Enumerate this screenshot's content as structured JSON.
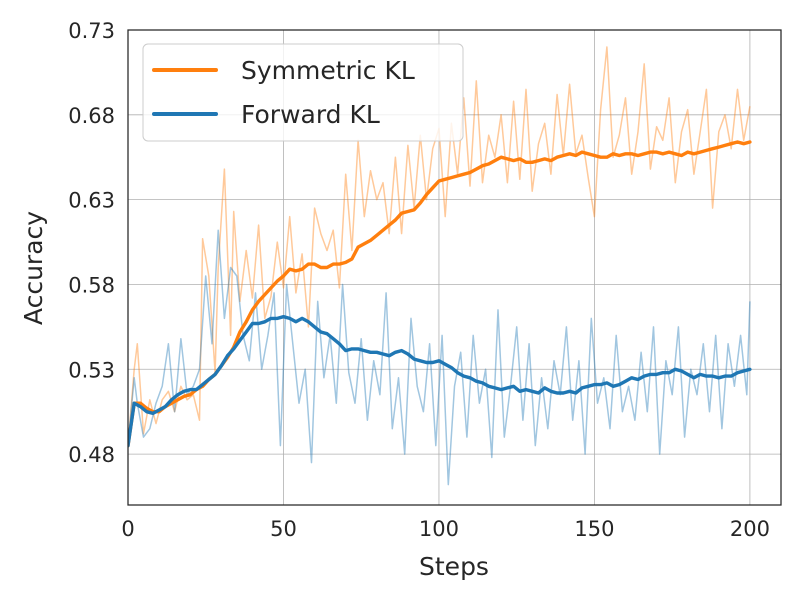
{
  "chart_data": {
    "type": "line",
    "title": "",
    "xlabel": "Steps",
    "ylabel": "Accuracy",
    "xlim": [
      0,
      210
    ],
    "ylim": [
      0.45,
      0.73
    ],
    "xticks": [
      0,
      50,
      100,
      150,
      200
    ],
    "yticks": [
      0.48,
      0.53,
      0.58,
      0.63,
      0.68,
      0.73
    ],
    "ytick_labels": [
      "0.48",
      "0.53",
      "0.58",
      "0.63",
      "0.68",
      "0.73"
    ],
    "grid": true,
    "legend_position": "top-left",
    "series": [
      {
        "name": "Symmetric KL",
        "color": "#ff7f0e",
        "smoothed": {
          "x": [
            0,
            2,
            4,
            6,
            8,
            10,
            12,
            14,
            16,
            18,
            20,
            22,
            24,
            26,
            28,
            30,
            32,
            34,
            36,
            38,
            40,
            42,
            44,
            46,
            48,
            50,
            52,
            54,
            56,
            58,
            60,
            62,
            64,
            66,
            68,
            70,
            72,
            74,
            76,
            78,
            80,
            82,
            84,
            86,
            88,
            90,
            92,
            94,
            96,
            98,
            100,
            102,
            104,
            106,
            108,
            110,
            112,
            114,
            116,
            118,
            120,
            122,
            124,
            126,
            128,
            130,
            132,
            134,
            136,
            138,
            140,
            142,
            144,
            146,
            148,
            150,
            152,
            154,
            156,
            158,
            160,
            162,
            164,
            166,
            168,
            170,
            172,
            174,
            176,
            178,
            180,
            182,
            184,
            186,
            188,
            190,
            192,
            194,
            196,
            198,
            200
          ],
          "y": [
            0.485,
            0.51,
            0.51,
            0.507,
            0.505,
            0.505,
            0.508,
            0.51,
            0.512,
            0.514,
            0.515,
            0.518,
            0.52,
            0.524,
            0.527,
            0.532,
            0.537,
            0.543,
            0.552,
            0.558,
            0.565,
            0.57,
            0.574,
            0.578,
            0.582,
            0.585,
            0.589,
            0.588,
            0.589,
            0.592,
            0.592,
            0.59,
            0.59,
            0.592,
            0.592,
            0.593,
            0.595,
            0.602,
            0.604,
            0.606,
            0.609,
            0.612,
            0.615,
            0.618,
            0.622,
            0.623,
            0.624,
            0.628,
            0.633,
            0.637,
            0.641,
            0.642,
            0.643,
            0.644,
            0.645,
            0.646,
            0.648,
            0.65,
            0.651,
            0.653,
            0.655,
            0.654,
            0.653,
            0.654,
            0.652,
            0.652,
            0.653,
            0.654,
            0.653,
            0.655,
            0.656,
            0.657,
            0.656,
            0.658,
            0.657,
            0.656,
            0.655,
            0.655,
            0.657,
            0.656,
            0.657,
            0.657,
            0.656,
            0.657,
            0.658,
            0.658,
            0.657,
            0.658,
            0.657,
            0.656,
            0.658,
            0.657,
            0.658,
            0.659,
            0.66,
            0.661,
            0.662,
            0.663,
            0.664,
            0.663,
            0.664
          ]
        },
        "raw": {
          "x": [
            0,
            2,
            3,
            5,
            7,
            9,
            11,
            13,
            15,
            17,
            19,
            21,
            23,
            24,
            26,
            28,
            29,
            31,
            33,
            34,
            36,
            38,
            40,
            42,
            44,
            46,
            48,
            50,
            52,
            54,
            56,
            58,
            60,
            62,
            64,
            66,
            68,
            70,
            72,
            74,
            76,
            78,
            80,
            82,
            84,
            86,
            88,
            90,
            92,
            94,
            96,
            98,
            100,
            102,
            104,
            106,
            108,
            110,
            112,
            114,
            116,
            118,
            120,
            122,
            124,
            126,
            128,
            130,
            132,
            134,
            136,
            138,
            140,
            142,
            144,
            146,
            148,
            150,
            152,
            154,
            156,
            158,
            160,
            162,
            164,
            166,
            168,
            170,
            172,
            174,
            176,
            178,
            180,
            182,
            184,
            186,
            188,
            190,
            192,
            194,
            196,
            198,
            200
          ],
          "y": [
            0.485,
            0.53,
            0.545,
            0.492,
            0.512,
            0.498,
            0.512,
            0.517,
            0.505,
            0.52,
            0.512,
            0.515,
            0.5,
            0.607,
            0.585,
            0.528,
            0.59,
            0.648,
            0.55,
            0.623,
            0.57,
            0.6,
            0.572,
            0.615,
            0.56,
            0.573,
            0.605,
            0.578,
            0.62,
            0.575,
            0.598,
            0.555,
            0.625,
            0.61,
            0.6,
            0.612,
            0.578,
            0.645,
            0.6,
            0.665,
            0.62,
            0.647,
            0.63,
            0.64,
            0.61,
            0.655,
            0.61,
            0.662,
            0.625,
            0.668,
            0.63,
            0.66,
            0.672,
            0.62,
            0.675,
            0.645,
            0.69,
            0.638,
            0.7,
            0.64,
            0.668,
            0.655,
            0.68,
            0.64,
            0.688,
            0.642,
            0.695,
            0.635,
            0.663,
            0.675,
            0.645,
            0.692,
            0.656,
            0.698,
            0.657,
            0.668,
            0.643,
            0.62,
            0.683,
            0.72,
            0.655,
            0.668,
            0.69,
            0.645,
            0.67,
            0.71,
            0.648,
            0.673,
            0.665,
            0.69,
            0.64,
            0.67,
            0.683,
            0.645,
            0.67,
            0.695,
            0.625,
            0.67,
            0.68,
            0.66,
            0.695,
            0.665,
            0.685
          ]
        }
      },
      {
        "name": "Forward KL",
        "color": "#1f77b4",
        "smoothed": {
          "x": [
            0,
            2,
            4,
            6,
            8,
            10,
            12,
            14,
            16,
            18,
            20,
            22,
            24,
            26,
            28,
            30,
            32,
            34,
            36,
            38,
            40,
            42,
            44,
            46,
            48,
            50,
            52,
            54,
            56,
            58,
            60,
            62,
            64,
            66,
            68,
            70,
            72,
            74,
            76,
            78,
            80,
            82,
            84,
            86,
            88,
            90,
            92,
            94,
            96,
            98,
            100,
            102,
            104,
            106,
            108,
            110,
            112,
            114,
            116,
            118,
            120,
            122,
            124,
            126,
            128,
            130,
            132,
            134,
            136,
            138,
            140,
            142,
            144,
            146,
            148,
            150,
            152,
            154,
            156,
            158,
            160,
            162,
            164,
            166,
            168,
            170,
            172,
            174,
            176,
            178,
            180,
            182,
            184,
            186,
            188,
            190,
            192,
            194,
            196,
            198,
            200
          ],
          "y": [
            0.485,
            0.51,
            0.508,
            0.505,
            0.504,
            0.506,
            0.508,
            0.512,
            0.515,
            0.517,
            0.518,
            0.518,
            0.521,
            0.524,
            0.527,
            0.532,
            0.538,
            0.542,
            0.547,
            0.552,
            0.557,
            0.557,
            0.558,
            0.56,
            0.56,
            0.561,
            0.56,
            0.558,
            0.56,
            0.558,
            0.555,
            0.552,
            0.551,
            0.548,
            0.545,
            0.541,
            0.542,
            0.542,
            0.541,
            0.54,
            0.54,
            0.539,
            0.538,
            0.54,
            0.541,
            0.539,
            0.536,
            0.535,
            0.534,
            0.534,
            0.535,
            0.533,
            0.531,
            0.528,
            0.526,
            0.525,
            0.523,
            0.522,
            0.52,
            0.519,
            0.518,
            0.519,
            0.52,
            0.517,
            0.518,
            0.517,
            0.516,
            0.519,
            0.517,
            0.516,
            0.516,
            0.517,
            0.516,
            0.519,
            0.52,
            0.521,
            0.521,
            0.522,
            0.52,
            0.521,
            0.523,
            0.525,
            0.524,
            0.526,
            0.527,
            0.527,
            0.528,
            0.528,
            0.53,
            0.529,
            0.527,
            0.525,
            0.527,
            0.526,
            0.526,
            0.525,
            0.526,
            0.526,
            0.528,
            0.529,
            0.53
          ]
        },
        "raw": {
          "x": [
            0,
            2,
            3,
            5,
            7,
            9,
            11,
            13,
            15,
            17,
            19,
            21,
            23,
            25,
            27,
            29,
            31,
            33,
            35,
            37,
            39,
            41,
            43,
            45,
            47,
            49,
            51,
            53,
            55,
            57,
            59,
            61,
            63,
            65,
            67,
            69,
            71,
            73,
            75,
            77,
            79,
            81,
            83,
            85,
            87,
            89,
            91,
            93,
            95,
            97,
            99,
            101,
            103,
            105,
            107,
            109,
            111,
            113,
            115,
            117,
            119,
            121,
            123,
            125,
            127,
            129,
            131,
            133,
            135,
            137,
            139,
            141,
            143,
            145,
            147,
            149,
            151,
            153,
            155,
            157,
            159,
            161,
            163,
            165,
            167,
            169,
            171,
            173,
            175,
            177,
            179,
            181,
            183,
            185,
            187,
            189,
            191,
            193,
            195,
            197,
            199,
            200
          ],
          "y": [
            0.485,
            0.525,
            0.51,
            0.49,
            0.495,
            0.51,
            0.52,
            0.545,
            0.505,
            0.548,
            0.515,
            0.52,
            0.53,
            0.585,
            0.545,
            0.612,
            0.56,
            0.59,
            0.585,
            0.55,
            0.535,
            0.575,
            0.53,
            0.55,
            0.575,
            0.485,
            0.58,
            0.545,
            0.51,
            0.53,
            0.475,
            0.57,
            0.525,
            0.55,
            0.51,
            0.58,
            0.528,
            0.51,
            0.548,
            0.5,
            0.535,
            0.515,
            0.575,
            0.495,
            0.525,
            0.48,
            0.56,
            0.52,
            0.505,
            0.545,
            0.485,
            0.55,
            0.462,
            0.52,
            0.54,
            0.49,
            0.55,
            0.51,
            0.53,
            0.478,
            0.565,
            0.49,
            0.52,
            0.555,
            0.5,
            0.545,
            0.485,
            0.525,
            0.495,
            0.535,
            0.515,
            0.555,
            0.5,
            0.535,
            0.48,
            0.56,
            0.51,
            0.525,
            0.495,
            0.55,
            0.505,
            0.52,
            0.5,
            0.54,
            0.505,
            0.555,
            0.48,
            0.535,
            0.515,
            0.555,
            0.49,
            0.53,
            0.515,
            0.545,
            0.505,
            0.55,
            0.495,
            0.545,
            0.52,
            0.55,
            0.515,
            0.57
          ]
        }
      }
    ]
  }
}
